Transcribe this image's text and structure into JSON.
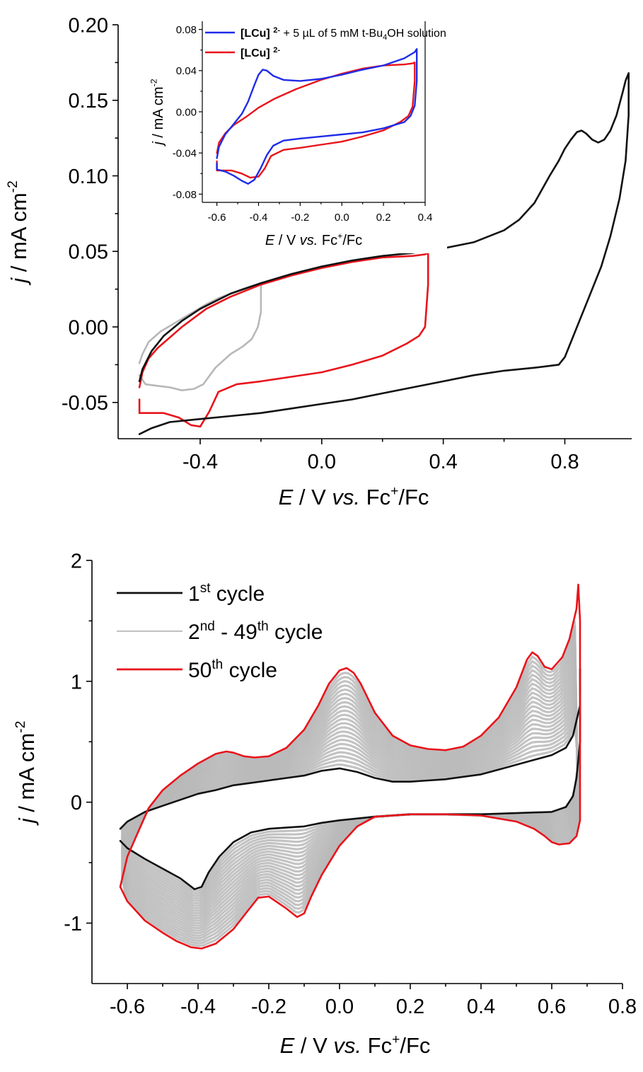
{
  "chart_data": [
    {
      "id": "top",
      "type": "line",
      "xlabel": {
        "italic": "E",
        "pre": " / V ",
        "italic2": "vs.",
        "post": " Fc",
        "sup": "+",
        "post2": "/Fc"
      },
      "ylabel": {
        "italic": "j",
        "post": " / mA cm",
        "sup": "-2"
      },
      "xlim": [
        -0.67,
        1.02
      ],
      "ylim": [
        -0.074,
        0.2
      ],
      "xticks": [
        -0.4,
        0.0,
        0.4,
        0.8
      ],
      "xtick_labels": [
        "-0.4",
        "0.0",
        "0.4",
        "0.8"
      ],
      "yticks": [
        -0.05,
        0.0,
        0.05,
        0.1,
        0.15,
        0.2
      ],
      "ytick_labels": [
        "-0.05",
        "0.00",
        "0.05",
        "0.10",
        "0.15",
        "0.20"
      ],
      "colors": {
        "black": "#111111",
        "red": "#e8141b",
        "grey": "#b8b8b8"
      },
      "series": [
        {
          "color": "grey",
          "x": [
            -0.6,
            -0.59,
            -0.57,
            -0.53,
            -0.48,
            -0.43,
            -0.38,
            -0.34,
            -0.3,
            -0.26,
            -0.23,
            -0.2,
            -0.2,
            -0.21,
            -0.23,
            -0.26,
            -0.3,
            -0.35,
            -0.39,
            -0.42,
            -0.46,
            -0.5,
            -0.54,
            -0.58,
            -0.6
          ],
          "y": [
            -0.024,
            -0.018,
            -0.01,
            -0.003,
            0.003,
            0.009,
            0.015,
            0.019,
            0.022,
            0.025,
            0.027,
            0.028,
            0.01,
            0.0,
            -0.008,
            -0.013,
            -0.018,
            -0.027,
            -0.038,
            -0.041,
            -0.042,
            -0.04,
            -0.039,
            -0.038,
            -0.032
          ]
        },
        {
          "color": "red",
          "x": [
            -0.6,
            -0.59,
            -0.57,
            -0.54,
            -0.5,
            -0.46,
            -0.42,
            -0.38,
            -0.3,
            -0.2,
            -0.1,
            0.0,
            0.1,
            0.2,
            0.3,
            0.34,
            0.35,
            0.35,
            0.34,
            0.32,
            0.28,
            0.2,
            0.1,
            0.0,
            -0.1,
            -0.2,
            -0.28,
            -0.34,
            -0.37,
            -0.4,
            -0.43,
            -0.47,
            -0.52,
            -0.57,
            -0.6,
            -0.6
          ],
          "y": [
            -0.04,
            -0.03,
            -0.021,
            -0.014,
            -0.007,
            0.0,
            0.006,
            0.012,
            0.02,
            0.028,
            0.034,
            0.039,
            0.043,
            0.046,
            0.047,
            0.048,
            0.049,
            0.028,
            0.0,
            -0.006,
            -0.011,
            -0.019,
            -0.025,
            -0.03,
            -0.033,
            -0.036,
            -0.038,
            -0.043,
            -0.056,
            -0.066,
            -0.065,
            -0.06,
            -0.057,
            -0.057,
            -0.057,
            -0.048
          ]
        },
        {
          "color": "black",
          "x": [
            -0.6,
            -0.59,
            -0.56,
            -0.52,
            -0.46,
            -0.4,
            -0.3,
            -0.2,
            -0.1,
            0.0,
            0.1,
            0.2,
            0.3,
            0.4,
            0.5,
            0.6,
            0.65,
            0.7,
            0.75,
            0.78,
            0.8,
            0.82,
            0.84,
            0.855,
            0.87,
            0.89,
            0.91,
            0.93,
            0.95,
            0.97,
            0.99,
            1.0,
            1.01,
            1.01,
            1.0,
            0.98,
            0.95,
            0.92,
            0.88,
            0.85,
            0.82,
            0.8,
            0.78,
            0.7,
            0.6,
            0.5,
            0.4,
            0.3,
            0.2,
            0.1,
            0.0,
            -0.1,
            -0.2,
            -0.3,
            -0.4,
            -0.5,
            -0.56,
            -0.6
          ],
          "y": [
            -0.036,
            -0.028,
            -0.016,
            -0.006,
            0.004,
            0.012,
            0.022,
            0.029,
            0.035,
            0.04,
            0.044,
            0.047,
            0.049,
            0.052,
            0.056,
            0.064,
            0.071,
            0.082,
            0.1,
            0.11,
            0.118,
            0.124,
            0.129,
            0.13,
            0.128,
            0.124,
            0.122,
            0.124,
            0.13,
            0.14,
            0.155,
            0.163,
            0.168,
            0.14,
            0.11,
            0.085,
            0.06,
            0.04,
            0.02,
            0.005,
            -0.01,
            -0.02,
            -0.025,
            -0.027,
            -0.029,
            -0.032,
            -0.036,
            -0.04,
            -0.044,
            -0.048,
            -0.051,
            -0.054,
            -0.057,
            -0.059,
            -0.061,
            -0.063,
            -0.067,
            -0.071
          ]
        }
      ]
    },
    {
      "id": "inset",
      "type": "line",
      "xlabel": {
        "italic": "E",
        "pre": " / V ",
        "italic2": "vs.",
        "post": " Fc",
        "sup": "+",
        "post2": "/Fc"
      },
      "ylabel": {
        "italic": "j",
        "post": " / mA cm",
        "sup": "-2"
      },
      "xlim": [
        -0.67,
        0.4
      ],
      "ylim": [
        -0.088,
        0.088
      ],
      "xticks": [
        -0.6,
        -0.4,
        -0.2,
        0.0,
        0.2,
        0.4
      ],
      "xtick_labels": [
        "-0.6",
        "-0.4",
        "-0.2",
        "0.0",
        "0.2",
        "0.4"
      ],
      "yticks": [
        -0.08,
        -0.04,
        0.0,
        0.04,
        0.08
      ],
      "ytick_labels": [
        "-0.08",
        "-0.04",
        "0.00",
        "0.04",
        "0.08"
      ],
      "colors": {
        "red": "#e8141b",
        "blue": "#1f2ce8"
      },
      "legend": [
        {
          "color": "blue",
          "bold": "[LCu]",
          "sup": "2-",
          "rest": " + 5 µL of 5 mM t-Bu",
          "sub": "4",
          "rest2": "OH solution"
        },
        {
          "color": "red",
          "bold": "[LCu]",
          "sup": "2-",
          "rest": "",
          "sub": "",
          "rest2": ""
        }
      ],
      "series": [
        {
          "color": "red",
          "x": [
            -0.6,
            -0.59,
            -0.56,
            -0.52,
            -0.46,
            -0.4,
            -0.32,
            -0.22,
            -0.1,
            0.0,
            0.1,
            0.2,
            0.3,
            0.34,
            0.35,
            0.35,
            0.34,
            0.32,
            0.28,
            0.2,
            0.1,
            0.0,
            -0.1,
            -0.2,
            -0.28,
            -0.34,
            -0.37,
            -0.4,
            -0.44,
            -0.48,
            -0.53,
            -0.57,
            -0.6,
            -0.6
          ],
          "y": [
            -0.04,
            -0.03,
            -0.021,
            -0.013,
            -0.005,
            0.004,
            0.013,
            0.022,
            0.031,
            0.037,
            0.042,
            0.045,
            0.046,
            0.047,
            0.048,
            0.03,
            0.005,
            -0.004,
            -0.01,
            -0.018,
            -0.024,
            -0.029,
            -0.032,
            -0.035,
            -0.037,
            -0.043,
            -0.055,
            -0.063,
            -0.064,
            -0.06,
            -0.057,
            -0.057,
            -0.057,
            -0.048
          ]
        },
        {
          "color": "blue",
          "x": [
            -0.6,
            -0.59,
            -0.56,
            -0.52,
            -0.48,
            -0.45,
            -0.42,
            -0.4,
            -0.38,
            -0.36,
            -0.33,
            -0.28,
            -0.2,
            -0.1,
            0.0,
            0.1,
            0.2,
            0.3,
            0.35,
            0.36,
            0.36,
            0.35,
            0.33,
            0.3,
            0.2,
            0.1,
            0.0,
            -0.1,
            -0.2,
            -0.28,
            -0.33,
            -0.36,
            -0.39,
            -0.42,
            -0.45,
            -0.48,
            -0.52,
            -0.56,
            -0.6,
            -0.6
          ],
          "y": [
            -0.045,
            -0.034,
            -0.022,
            -0.012,
            -0.002,
            0.01,
            0.026,
            0.036,
            0.041,
            0.04,
            0.035,
            0.031,
            0.03,
            0.032,
            0.036,
            0.041,
            0.045,
            0.052,
            0.058,
            0.061,
            0.03,
            0.006,
            -0.004,
            -0.01,
            -0.016,
            -0.02,
            -0.022,
            -0.024,
            -0.026,
            -0.028,
            -0.033,
            -0.042,
            -0.055,
            -0.066,
            -0.07,
            -0.067,
            -0.062,
            -0.058,
            -0.056,
            -0.05
          ]
        }
      ]
    },
    {
      "id": "bottom",
      "type": "line",
      "xlabel": {
        "italic": "E",
        "pre": " / V ",
        "italic2": "vs.",
        "post": " Fc",
        "sup": "+",
        "post2": "/Fc"
      },
      "ylabel": {
        "italic": "j",
        "post": " / mA cm",
        "sup": "-2"
      },
      "xlim": [
        -0.7,
        0.8
      ],
      "ylim": [
        -1.5,
        2.0
      ],
      "xticks": [
        -0.6,
        -0.4,
        -0.2,
        0.0,
        0.2,
        0.4,
        0.6,
        0.8
      ],
      "xtick_labels": [
        "-0.6",
        "-0.4",
        "-0.2",
        "0.0",
        "0.2",
        "0.4",
        "0.6",
        "0.8"
      ],
      "yticks": [
        -1,
        0,
        1,
        2
      ],
      "ytick_labels": [
        "-1",
        "0",
        "1",
        "2"
      ],
      "colors": {
        "black": "#111111",
        "red": "#e8141b",
        "grey": "#b8b8b8"
      },
      "legend": [
        {
          "color": "black",
          "num": "1",
          "sup": "st",
          "text": " cycle"
        },
        {
          "color": "grey",
          "num": "2",
          "sup": "nd",
          "text": " - 49",
          "sup2": "th",
          "text2": " cycle"
        },
        {
          "color": "red",
          "num": "50",
          "sup": "th",
          "text": " cycle"
        }
      ],
      "series": [
        {
          "color": "black",
          "x": [
            -0.62,
            -0.6,
            -0.55,
            -0.5,
            -0.45,
            -0.4,
            -0.35,
            -0.3,
            -0.25,
            -0.2,
            -0.15,
            -0.1,
            -0.05,
            0.0,
            0.05,
            0.1,
            0.15,
            0.2,
            0.25,
            0.3,
            0.35,
            0.4,
            0.45,
            0.5,
            0.55,
            0.6,
            0.64,
            0.66,
            0.68,
            0.68,
            0.68,
            0.67,
            0.66,
            0.64,
            0.6,
            0.5,
            0.4,
            0.3,
            0.2,
            0.1,
            0.0,
            -0.05,
            -0.1,
            -0.15,
            -0.2,
            -0.25,
            -0.3,
            -0.34,
            -0.37,
            -0.39,
            -0.41,
            -0.45,
            -0.5,
            -0.55,
            -0.6,
            -0.62
          ],
          "y": [
            -0.22,
            -0.16,
            -0.08,
            -0.03,
            0.02,
            0.07,
            0.1,
            0.14,
            0.16,
            0.18,
            0.2,
            0.22,
            0.26,
            0.28,
            0.25,
            0.2,
            0.17,
            0.17,
            0.18,
            0.19,
            0.21,
            0.23,
            0.27,
            0.31,
            0.35,
            0.39,
            0.45,
            0.55,
            0.8,
            1.1,
            0.5,
            0.2,
            0.05,
            -0.04,
            -0.08,
            -0.09,
            -0.1,
            -0.1,
            -0.1,
            -0.12,
            -0.15,
            -0.17,
            -0.2,
            -0.21,
            -0.22,
            -0.25,
            -0.33,
            -0.45,
            -0.58,
            -0.7,
            -0.72,
            -0.63,
            -0.55,
            -0.47,
            -0.38,
            -0.32
          ]
        },
        {
          "color": "red",
          "x": [
            -0.62,
            -0.6,
            -0.57,
            -0.54,
            -0.5,
            -0.45,
            -0.4,
            -0.35,
            -0.32,
            -0.3,
            -0.27,
            -0.24,
            -0.2,
            -0.15,
            -0.1,
            -0.06,
            -0.03,
            0.0,
            0.02,
            0.04,
            0.06,
            0.1,
            0.15,
            0.2,
            0.25,
            0.3,
            0.35,
            0.4,
            0.45,
            0.5,
            0.53,
            0.545,
            0.56,
            0.58,
            0.6,
            0.63,
            0.65,
            0.67,
            0.675,
            0.68,
            0.68,
            0.68,
            0.67,
            0.65,
            0.62,
            0.6,
            0.58,
            0.55,
            0.5,
            0.4,
            0.3,
            0.2,
            0.1,
            0.05,
            0.0,
            -0.05,
            -0.08,
            -0.1,
            -0.12,
            -0.15,
            -0.2,
            -0.23,
            -0.26,
            -0.3,
            -0.35,
            -0.39,
            -0.42,
            -0.46,
            -0.5,
            -0.55,
            -0.6,
            -0.62
          ],
          "y": [
            -0.7,
            -0.45,
            -0.25,
            -0.05,
            0.1,
            0.22,
            0.32,
            0.4,
            0.42,
            0.41,
            0.38,
            0.37,
            0.38,
            0.45,
            0.6,
            0.8,
            0.98,
            1.09,
            1.11,
            1.07,
            0.98,
            0.74,
            0.55,
            0.47,
            0.44,
            0.43,
            0.46,
            0.55,
            0.7,
            0.95,
            1.18,
            1.24,
            1.21,
            1.12,
            1.1,
            1.2,
            1.35,
            1.6,
            1.8,
            1.5,
            0.4,
            -0.15,
            -0.28,
            -0.34,
            -0.35,
            -0.33,
            -0.28,
            -0.22,
            -0.16,
            -0.11,
            -0.1,
            -0.1,
            -0.12,
            -0.2,
            -0.36,
            -0.6,
            -0.78,
            -0.92,
            -0.95,
            -0.88,
            -0.78,
            -0.79,
            -0.9,
            -1.05,
            -1.17,
            -1.21,
            -1.2,
            -1.15,
            -1.08,
            -0.98,
            -0.82,
            -0.7
          ]
        }
      ]
    }
  ]
}
